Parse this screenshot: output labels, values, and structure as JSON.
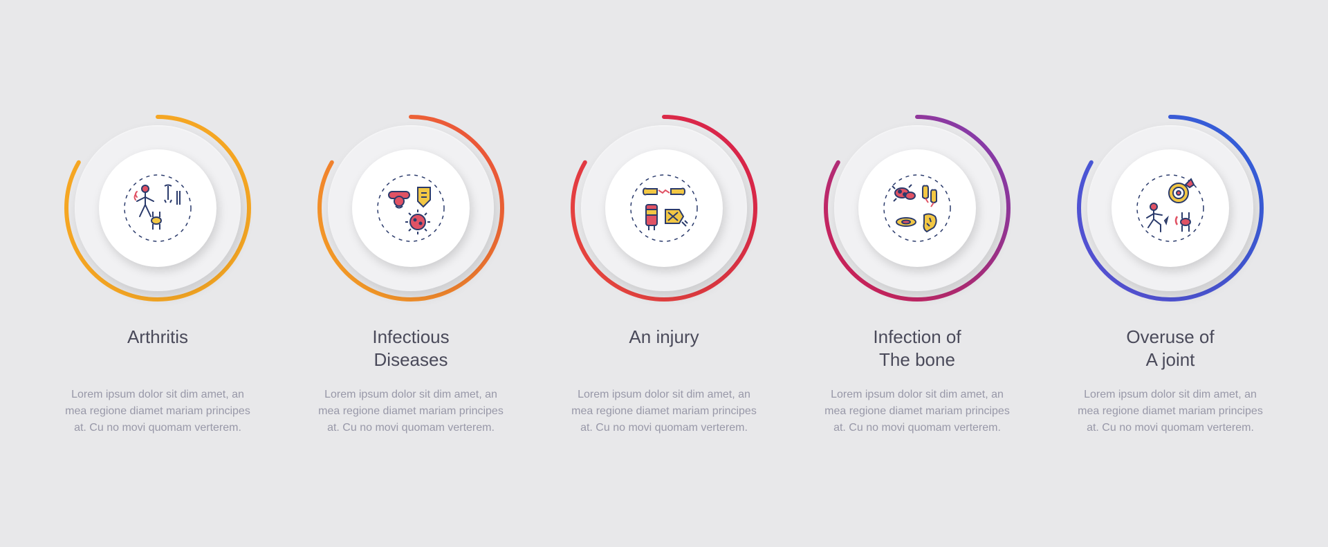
{
  "background_color": "#e8e8ea",
  "disc_outer_color": "#f1f1f3",
  "disc_inner_color": "#ffffff",
  "ring_stroke_width": 6,
  "title_color": "#4a4a5a",
  "title_fontsize": 26,
  "body_color": "#9898a8",
  "body_fontsize": 16,
  "placeholder_body": "Lorem ipsum dolor sit dim amet, an mea regione diamet mariam principes at. Cu no movi quomam verterem.",
  "icon_palette": {
    "primary": "#e05264",
    "accent": "#f2c744",
    "line": "#2a3a6b"
  },
  "items": [
    {
      "id": "arthritis",
      "label": "Arthritis",
      "ring_gradient": [
        "#f5a623",
        "#f5a623"
      ],
      "ring_arc_deg": 300,
      "icon": "arthritis"
    },
    {
      "id": "infectious-diseases",
      "label": "Infectious\nDiseases",
      "ring_gradient": [
        "#f5a623",
        "#e94b3c"
      ],
      "ring_arc_deg": 300,
      "icon": "infectious"
    },
    {
      "id": "an-injury",
      "label": "An injury",
      "ring_gradient": [
        "#e94b3c",
        "#d61f4c"
      ],
      "ring_arc_deg": 300,
      "icon": "injury"
    },
    {
      "id": "infection-of-the-bone",
      "label": "Infection of\nThe bone",
      "ring_gradient": [
        "#d61f4c",
        "#7a3fb5"
      ],
      "ring_arc_deg": 300,
      "icon": "bone-infection"
    },
    {
      "id": "overuse-of-a-joint",
      "label": "Overuse of\nA joint",
      "ring_gradient": [
        "#5a4fd1",
        "#2f5fd8"
      ],
      "ring_arc_deg": 300,
      "icon": "overuse"
    }
  ]
}
